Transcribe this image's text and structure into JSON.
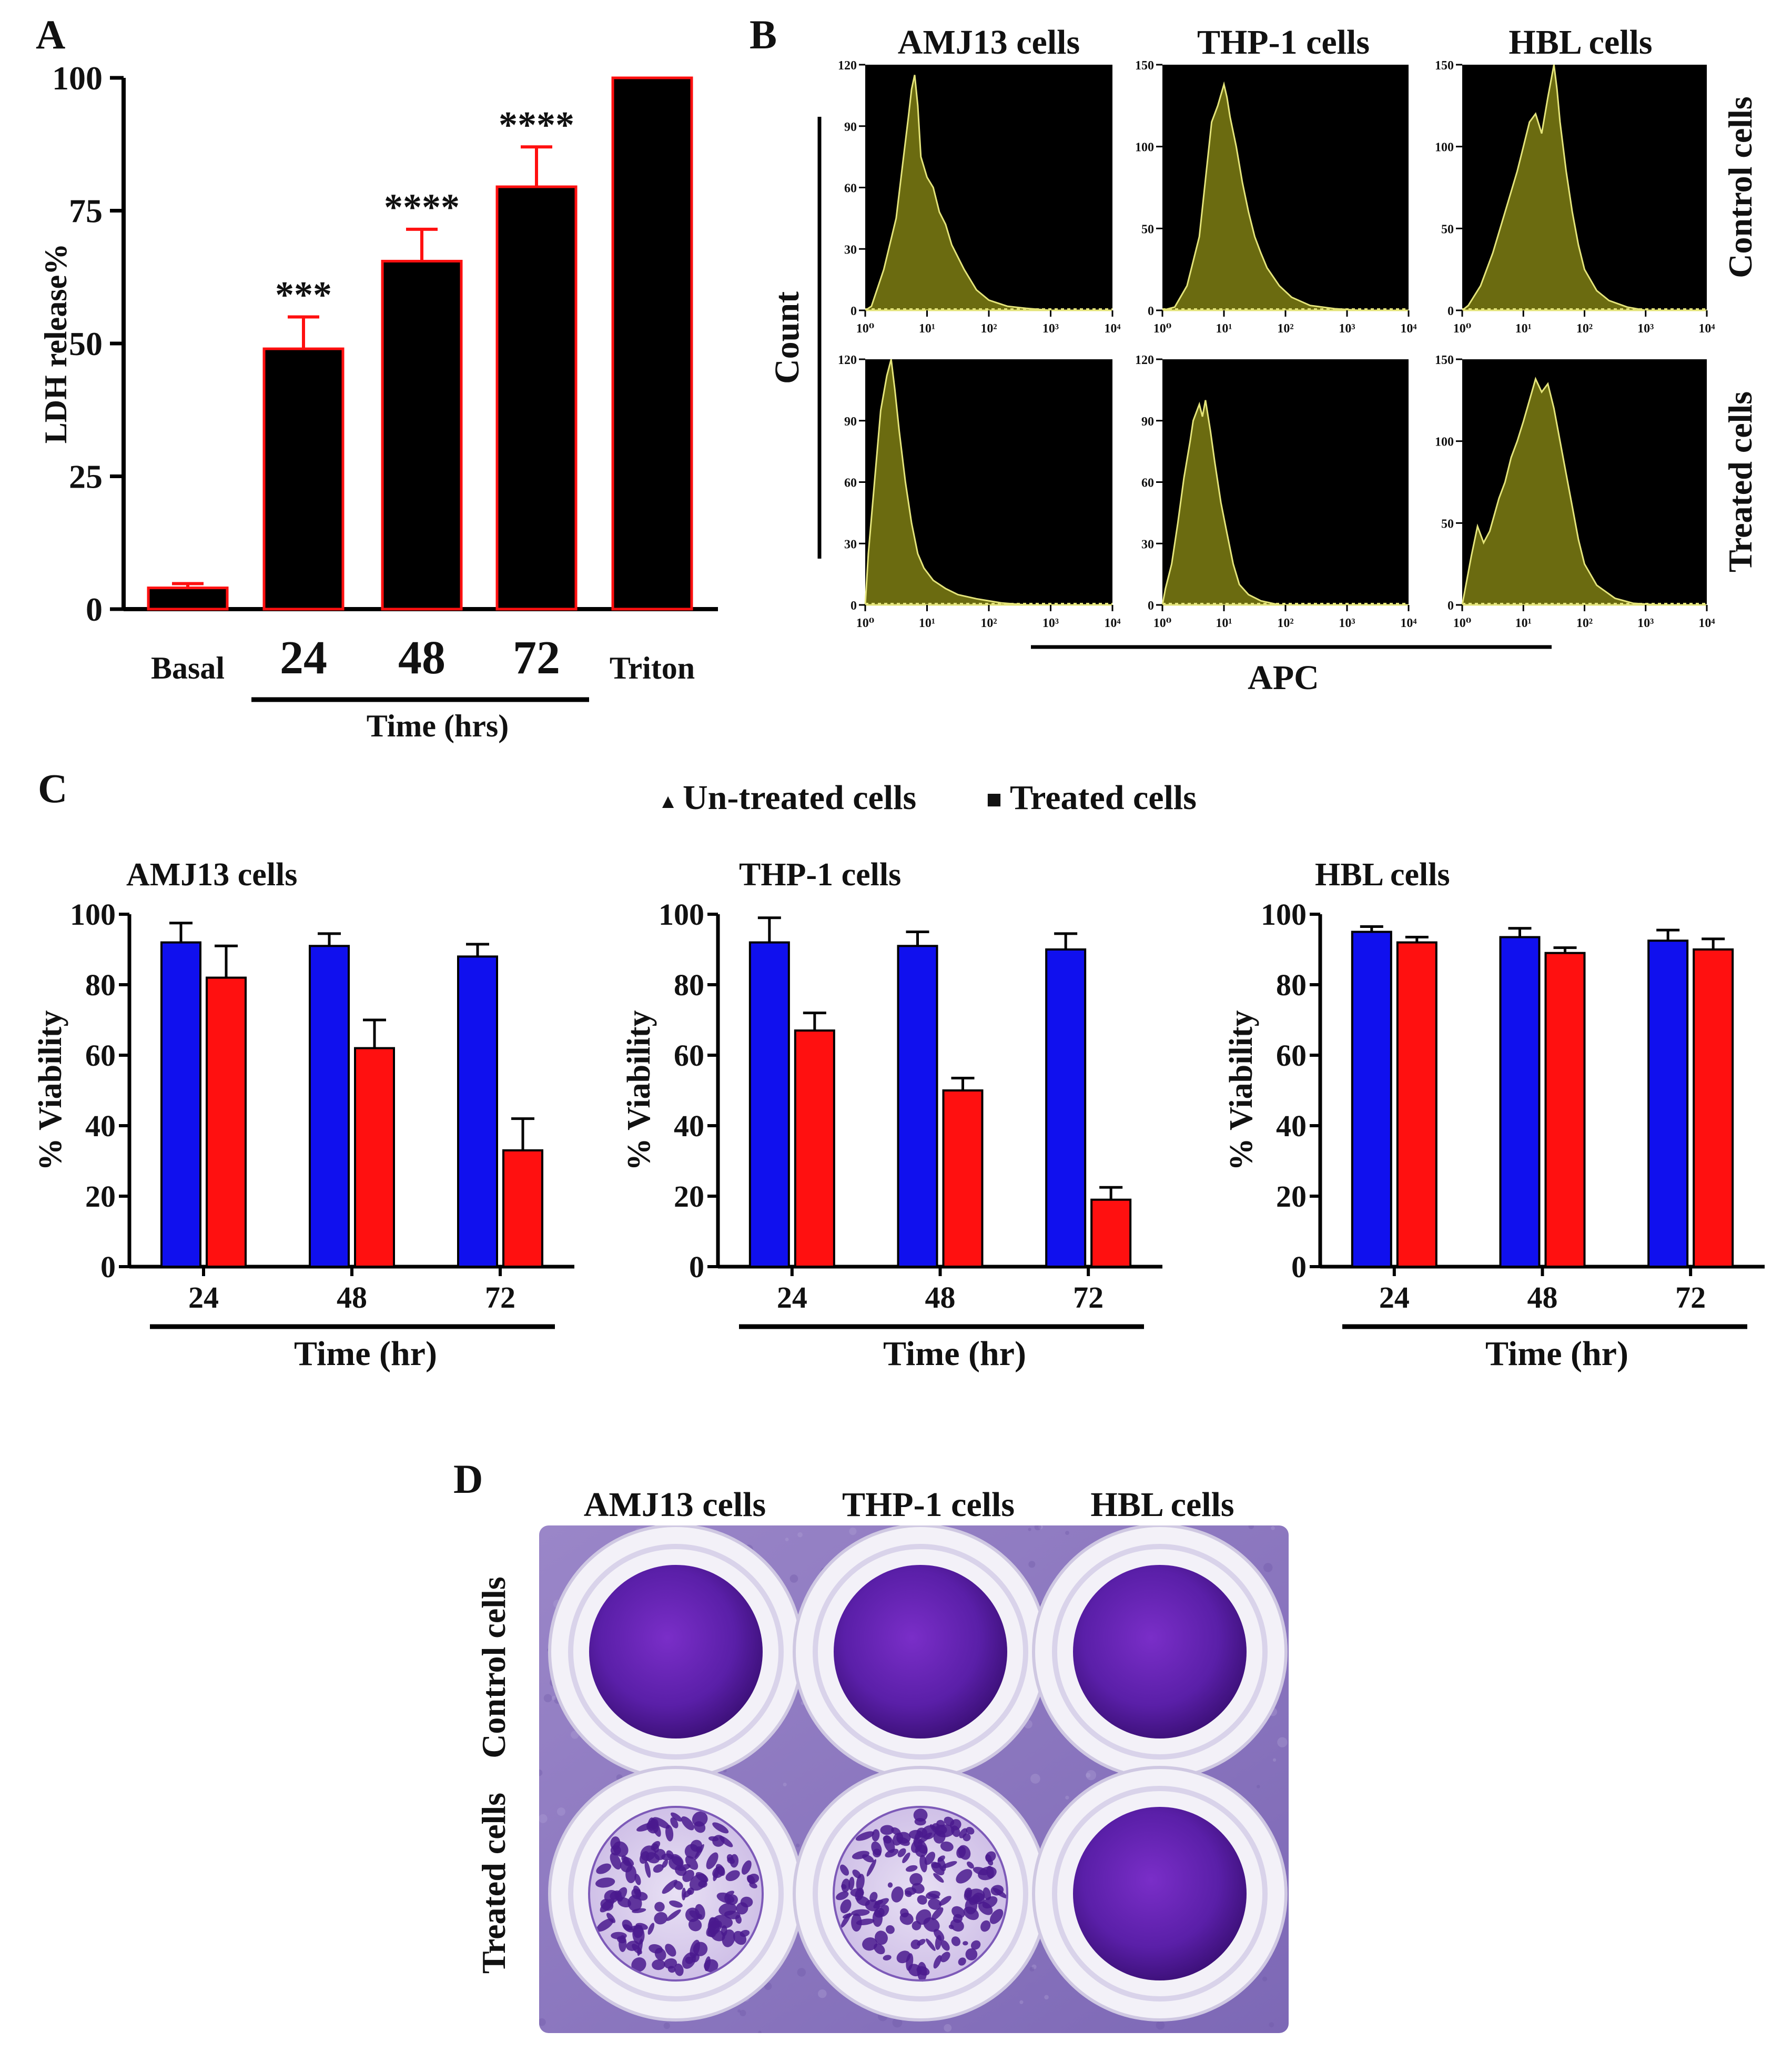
{
  "panels": [
    {
      "letter": "A"
    },
    {
      "letter": "B"
    },
    {
      "letter": "C"
    },
    {
      "letter": "D"
    }
  ],
  "colors": {
    "black": "#000000",
    "red": "#ff1010",
    "blue": "#1010ee",
    "histogram_fill": "#6b6b10",
    "histogram_line": "#e4e47a",
    "purple": "#5a1f9e"
  },
  "chart_data": [
    {
      "id": "A",
      "type": "bar",
      "title": "",
      "xlabel": "Time (hrs)",
      "ylabel": "LDH release%",
      "ylim": [
        0,
        100
      ],
      "yticks": [
        "0",
        "25",
        "50",
        "75",
        "100"
      ],
      "ytick_values": [
        0,
        25,
        50,
        75,
        100
      ],
      "categories": [
        "Basal",
        "24",
        "48",
        "72",
        "Triton"
      ],
      "values": [
        4,
        49,
        65.5,
        79.5,
        100
      ],
      "errors": [
        0.8,
        6,
        6,
        7.5,
        0
      ],
      "significance": [
        "",
        "***",
        "****",
        "****",
        ""
      ]
    },
    {
      "id": "B",
      "type": "histogram-grid",
      "xlabel": "APC",
      "ylabel": "Count",
      "columns": [
        "AMJ13 cells",
        "THP-1 cells",
        "HBL cells"
      ],
      "rows": [
        "Control cells",
        "Treated cells"
      ],
      "xticks": [
        "10⁰",
        "10¹",
        "10²",
        "10³",
        "10⁴"
      ],
      "xtick_values": [
        0,
        1,
        2,
        3,
        4
      ],
      "plots": [
        {
          "row": 0,
          "col": 0,
          "ymax": 120,
          "yticks": [
            "0",
            "30",
            "60",
            "90",
            "120"
          ],
          "ytick_values": [
            0,
            30,
            60,
            90,
            120
          ],
          "curve": [
            [
              0,
              0
            ],
            [
              0.1,
              2
            ],
            [
              0.3,
              20
            ],
            [
              0.5,
              45
            ],
            [
              0.6,
              70
            ],
            [
              0.7,
              95
            ],
            [
              0.75,
              108
            ],
            [
              0.8,
              115
            ],
            [
              0.85,
              100
            ],
            [
              0.9,
              75
            ],
            [
              1.0,
              65
            ],
            [
              1.1,
              60
            ],
            [
              1.2,
              48
            ],
            [
              1.3,
              42
            ],
            [
              1.4,
              32
            ],
            [
              1.6,
              20
            ],
            [
              1.8,
              10
            ],
            [
              2.0,
              5
            ],
            [
              2.3,
              2
            ],
            [
              2.6,
              1
            ],
            [
              3.0,
              0
            ],
            [
              4.0,
              0
            ]
          ]
        },
        {
          "row": 0,
          "col": 1,
          "ymax": 150,
          "yticks": [
            "0",
            "50",
            "100",
            "150"
          ],
          "ytick_values": [
            0,
            50,
            100,
            150
          ],
          "curve": [
            [
              0,
              0
            ],
            [
              0.2,
              2
            ],
            [
              0.4,
              15
            ],
            [
              0.6,
              45
            ],
            [
              0.7,
              80
            ],
            [
              0.8,
              115
            ],
            [
              0.9,
              125
            ],
            [
              1.0,
              138
            ],
            [
              1.05,
              130
            ],
            [
              1.1,
              118
            ],
            [
              1.2,
              100
            ],
            [
              1.3,
              78
            ],
            [
              1.4,
              60
            ],
            [
              1.5,
              45
            ],
            [
              1.6,
              35
            ],
            [
              1.7,
              26
            ],
            [
              1.9,
              15
            ],
            [
              2.1,
              8
            ],
            [
              2.4,
              3
            ],
            [
              2.8,
              1
            ],
            [
              3.2,
              0
            ],
            [
              4.0,
              0
            ]
          ]
        },
        {
          "row": 0,
          "col": 2,
          "ymax": 150,
          "yticks": [
            "0",
            "50",
            "100",
            "150"
          ],
          "ytick_values": [
            0,
            50,
            100,
            150
          ],
          "curve": [
            [
              0,
              0
            ],
            [
              0.1,
              3
            ],
            [
              0.3,
              15
            ],
            [
              0.5,
              35
            ],
            [
              0.7,
              60
            ],
            [
              0.9,
              85
            ],
            [
              1.0,
              100
            ],
            [
              1.1,
              115
            ],
            [
              1.2,
              120
            ],
            [
              1.3,
              108
            ],
            [
              1.4,
              130
            ],
            [
              1.5,
              150
            ],
            [
              1.55,
              135
            ],
            [
              1.6,
              115
            ],
            [
              1.7,
              85
            ],
            [
              1.8,
              60
            ],
            [
              1.9,
              40
            ],
            [
              2.0,
              25
            ],
            [
              2.2,
              12
            ],
            [
              2.4,
              6
            ],
            [
              2.7,
              2
            ],
            [
              3.0,
              0
            ],
            [
              4.0,
              0
            ]
          ]
        },
        {
          "row": 1,
          "col": 0,
          "ymax": 120,
          "yticks": [
            "0",
            "30",
            "60",
            "90",
            "120"
          ],
          "ytick_values": [
            0,
            30,
            60,
            90,
            120
          ],
          "curve": [
            [
              0,
              0
            ],
            [
              0.05,
              25
            ],
            [
              0.15,
              60
            ],
            [
              0.25,
              95
            ],
            [
              0.35,
              112
            ],
            [
              0.42,
              120
            ],
            [
              0.48,
              105
            ],
            [
              0.55,
              85
            ],
            [
              0.65,
              60
            ],
            [
              0.75,
              40
            ],
            [
              0.85,
              25
            ],
            [
              0.95,
              18
            ],
            [
              1.1,
              12
            ],
            [
              1.3,
              8
            ],
            [
              1.5,
              5
            ],
            [
              1.8,
              3
            ],
            [
              2.2,
              1
            ],
            [
              2.6,
              0
            ],
            [
              4.0,
              0
            ]
          ]
        },
        {
          "row": 1,
          "col": 1,
          "ymax": 120,
          "yticks": [
            "0",
            "30",
            "60",
            "90",
            "120"
          ],
          "ytick_values": [
            0,
            30,
            60,
            90,
            120
          ],
          "curve": [
            [
              0,
              0
            ],
            [
              0.05,
              8
            ],
            [
              0.15,
              20
            ],
            [
              0.25,
              40
            ],
            [
              0.35,
              62
            ],
            [
              0.45,
              80
            ],
            [
              0.5,
              90
            ],
            [
              0.6,
              98
            ],
            [
              0.65,
              92
            ],
            [
              0.7,
              100
            ],
            [
              0.78,
              85
            ],
            [
              0.85,
              70
            ],
            [
              0.95,
              50
            ],
            [
              1.05,
              35
            ],
            [
              1.15,
              20
            ],
            [
              1.25,
              10
            ],
            [
              1.4,
              5
            ],
            [
              1.6,
              2
            ],
            [
              1.9,
              0
            ],
            [
              4.0,
              0
            ]
          ]
        },
        {
          "row": 1,
          "col": 2,
          "ymax": 150,
          "yticks": [
            "0",
            "50",
            "100",
            "150"
          ],
          "ytick_values": [
            0,
            50,
            100,
            150
          ],
          "curve": [
            [
              0,
              0
            ],
            [
              0.05,
              10
            ],
            [
              0.15,
              30
            ],
            [
              0.25,
              48
            ],
            [
              0.35,
              38
            ],
            [
              0.45,
              45
            ],
            [
              0.6,
              65
            ],
            [
              0.7,
              75
            ],
            [
              0.8,
              90
            ],
            [
              0.9,
              100
            ],
            [
              1.0,
              112
            ],
            [
              1.1,
              125
            ],
            [
              1.2,
              138
            ],
            [
              1.3,
              130
            ],
            [
              1.4,
              135
            ],
            [
              1.5,
              120
            ],
            [
              1.6,
              100
            ],
            [
              1.7,
              80
            ],
            [
              1.8,
              60
            ],
            [
              1.9,
              40
            ],
            [
              2.0,
              25
            ],
            [
              2.2,
              12
            ],
            [
              2.5,
              4
            ],
            [
              2.8,
              1
            ],
            [
              3.2,
              0
            ],
            [
              4.0,
              0
            ]
          ]
        }
      ]
    },
    {
      "id": "C",
      "type": "bar",
      "legend": [
        {
          "name": "Un-treated cells",
          "color": "#1010ee",
          "marker": "▲"
        },
        {
          "name": "Treated cells",
          "color": "#ff1010",
          "marker": "■"
        }
      ],
      "legend_position": "top-center",
      "xlabel": "Time (hr)",
      "ylabel": "% Viability",
      "ylim": [
        0,
        100
      ],
      "yticks": [
        "0",
        "20",
        "40",
        "60",
        "80",
        "100"
      ],
      "ytick_values": [
        0,
        20,
        40,
        60,
        80,
        100
      ],
      "subplots": [
        {
          "title": "AMJ13 cells",
          "categories": [
            "24",
            "48",
            "72"
          ],
          "series": [
            {
              "name": "Un-treated cells",
              "values": [
                92,
                91,
                88
              ],
              "errors": [
                5.5,
                3.5,
                3.5
              ]
            },
            {
              "name": "Treated cells",
              "values": [
                82,
                62,
                33
              ],
              "errors": [
                9,
                8,
                9
              ]
            }
          ]
        },
        {
          "title": "THP-1 cells",
          "categories": [
            "24",
            "48",
            "72"
          ],
          "series": [
            {
              "name": "Un-treated cells",
              "values": [
                92,
                91,
                90
              ],
              "errors": [
                7,
                4,
                4.5
              ]
            },
            {
              "name": "Treated cells",
              "values": [
                67,
                50,
                19
              ],
              "errors": [
                5,
                3.5,
                3.5
              ]
            }
          ]
        },
        {
          "title": "HBL cells",
          "categories": [
            "24",
            "48",
            "72"
          ],
          "series": [
            {
              "name": "Un-treated cells",
              "values": [
                95,
                93.5,
                92.5
              ],
              "errors": [
                1.5,
                2.5,
                3
              ]
            },
            {
              "name": "Treated cells",
              "values": [
                92,
                89,
                90
              ],
              "errors": [
                1.5,
                1.5,
                3
              ]
            }
          ]
        }
      ]
    }
  ],
  "panel_d": {
    "columns": [
      "AMJ13 cells",
      "THP-1 cells",
      "HBL cells"
    ],
    "rows": [
      "Control cells",
      "Treated cells"
    ],
    "wells": [
      {
        "row": 0,
        "col": 0,
        "state": "confluent"
      },
      {
        "row": 0,
        "col": 1,
        "state": "confluent"
      },
      {
        "row": 0,
        "col": 2,
        "state": "confluent"
      },
      {
        "row": 1,
        "col": 0,
        "state": "sparse"
      },
      {
        "row": 1,
        "col": 1,
        "state": "sparse"
      },
      {
        "row": 1,
        "col": 2,
        "state": "confluent"
      }
    ]
  }
}
